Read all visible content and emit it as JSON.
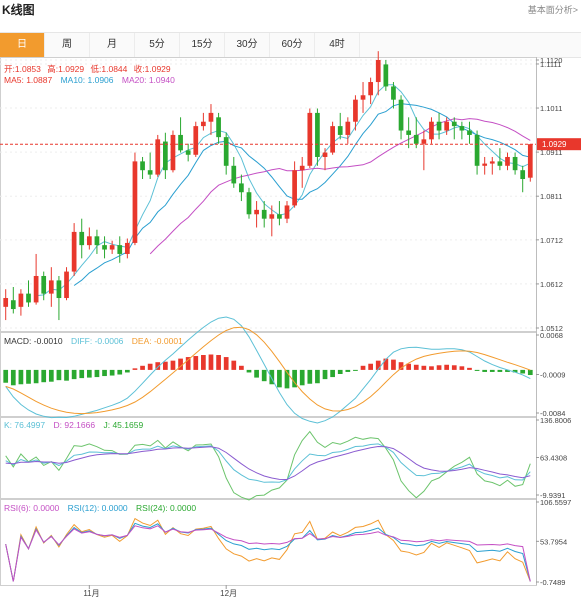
{
  "header": {
    "title": "K线图",
    "right_link": "基本面分析>"
  },
  "tabs": [
    {
      "label": "日",
      "active": true
    },
    {
      "label": "周",
      "active": false
    },
    {
      "label": "月",
      "active": false
    },
    {
      "label": "5分",
      "active": false
    },
    {
      "label": "15分",
      "active": false
    },
    {
      "label": "30分",
      "active": false
    },
    {
      "label": "60分",
      "active": false
    },
    {
      "label": "4时",
      "active": false
    }
  ],
  "colors": {
    "up": "#e8372c",
    "down": "#2aa830",
    "ma5": "#5cc0d6",
    "ma10": "#2a9fd0",
    "ma20": "#c44fc4",
    "accent": "#f29b2e"
  },
  "ohlc_info": {
    "open_label": "开:",
    "open": "1.0853",
    "high_label": "高:",
    "high": "1.0929",
    "low_label": "低:",
    "low": "1.0844",
    "close_label": "收:",
    "close": "1.0929"
  },
  "ma_info": {
    "ma5": "MA5: 1.0887",
    "ma10": "MA10: 1.0906",
    "ma20": "MA20: 1.0940"
  },
  "macd_info": {
    "macd": "MACD: -0.0010",
    "diff": "DIFF: -0.0006",
    "dea": "DEA: -0.0001"
  },
  "kdj_info": {
    "k": "K: 76.4997",
    "d": "D: 92.1666",
    "j": "J: 45.1659"
  },
  "rsi_info": {
    "rsi6": "RSI(6): 0.0000",
    "rsi12": "RSI(12): 0.0000",
    "rsi24": "RSI(24): 0.0000"
  },
  "chart_data": [
    {
      "type": "candlestick",
      "title": "K线图",
      "y_ticks": [
        "1.1120",
        "1.1111",
        "1.1011",
        "1.0911",
        "1.0811",
        "1.0712",
        "1.0612",
        "1.0512"
      ],
      "ylim": [
        1.0512,
        1.112
      ],
      "current_price_label": "1.0929",
      "x_ticks": [
        "11月",
        "12月"
      ],
      "candles": [
        {
          "o": 1.056,
          "h": 1.06,
          "l": 1.053,
          "c": 1.058
        },
        {
          "o": 1.0575,
          "h": 1.0605,
          "l": 1.0545,
          "c": 1.0555
        },
        {
          "o": 1.056,
          "h": 1.06,
          "l": 1.054,
          "c": 1.059
        },
        {
          "o": 1.059,
          "h": 1.062,
          "l": 1.056,
          "c": 1.057
        },
        {
          "o": 1.057,
          "h": 1.068,
          "l": 1.0565,
          "c": 1.063
        },
        {
          "o": 1.063,
          "h": 1.064,
          "l": 1.0575,
          "c": 1.059
        },
        {
          "o": 1.059,
          "h": 1.065,
          "l": 1.056,
          "c": 1.062
        },
        {
          "o": 1.062,
          "h": 1.063,
          "l": 1.053,
          "c": 1.058
        },
        {
          "o": 1.058,
          "h": 1.065,
          "l": 1.0575,
          "c": 1.064
        },
        {
          "o": 1.064,
          "h": 1.075,
          "l": 1.063,
          "c": 1.073
        },
        {
          "o": 1.073,
          "h": 1.076,
          "l": 1.067,
          "c": 1.07
        },
        {
          "o": 1.07,
          "h": 1.074,
          "l": 1.069,
          "c": 1.072
        },
        {
          "o": 1.072,
          "h": 1.0735,
          "l": 1.068,
          "c": 1.07
        },
        {
          "o": 1.07,
          "h": 1.072,
          "l": 1.067,
          "c": 1.069
        },
        {
          "o": 1.069,
          "h": 1.071,
          "l": 1.068,
          "c": 1.07
        },
        {
          "o": 1.07,
          "h": 1.072,
          "l": 1.066,
          "c": 1.068
        },
        {
          "o": 1.068,
          "h": 1.0715,
          "l": 1.067,
          "c": 1.0705
        },
        {
          "o": 1.0705,
          "h": 1.091,
          "l": 1.07,
          "c": 1.089
        },
        {
          "o": 1.089,
          "h": 1.09,
          "l": 1.085,
          "c": 1.087
        },
        {
          "o": 1.087,
          "h": 1.091,
          "l": 1.085,
          "c": 1.086
        },
        {
          "o": 1.086,
          "h": 1.095,
          "l": 1.0855,
          "c": 1.094
        },
        {
          "o": 1.0935,
          "h": 1.0955,
          "l": 1.085,
          "c": 1.087
        },
        {
          "o": 1.087,
          "h": 1.096,
          "l": 1.0865,
          "c": 1.095
        },
        {
          "o": 1.095,
          "h": 1.099,
          "l": 1.091,
          "c": 1.0915
        },
        {
          "o": 1.0915,
          "h": 1.093,
          "l": 1.089,
          "c": 1.0905
        },
        {
          "o": 1.0905,
          "h": 1.098,
          "l": 1.09,
          "c": 1.097
        },
        {
          "o": 1.097,
          "h": 1.1,
          "l": 1.096,
          "c": 1.098
        },
        {
          "o": 1.098,
          "h": 1.102,
          "l": 1.095,
          "c": 1.1
        },
        {
          "o": 1.099,
          "h": 1.1,
          "l": 1.093,
          "c": 1.0945
        },
        {
          "o": 1.0945,
          "h": 1.0955,
          "l": 1.086,
          "c": 1.088
        },
        {
          "o": 1.088,
          "h": 1.09,
          "l": 1.083,
          "c": 1.084
        },
        {
          "o": 1.084,
          "h": 1.086,
          "l": 1.08,
          "c": 1.082
        },
        {
          "o": 1.082,
          "h": 1.083,
          "l": 1.076,
          "c": 1.077
        },
        {
          "o": 1.077,
          "h": 1.08,
          "l": 1.074,
          "c": 1.078
        },
        {
          "o": 1.078,
          "h": 1.08,
          "l": 1.074,
          "c": 1.076
        },
        {
          "o": 1.076,
          "h": 1.079,
          "l": 1.072,
          "c": 1.077
        },
        {
          "o": 1.077,
          "h": 1.08,
          "l": 1.0745,
          "c": 1.076
        },
        {
          "o": 1.076,
          "h": 1.08,
          "l": 1.075,
          "c": 1.079
        },
        {
          "o": 1.079,
          "h": 1.089,
          "l": 1.0785,
          "c": 1.087
        },
        {
          "o": 1.087,
          "h": 1.09,
          "l": 1.083,
          "c": 1.088
        },
        {
          "o": 1.088,
          "h": 1.101,
          "l": 1.0875,
          "c": 1.1
        },
        {
          "o": 1.1,
          "h": 1.101,
          "l": 1.088,
          "c": 1.09
        },
        {
          "o": 1.09,
          "h": 1.092,
          "l": 1.087,
          "c": 1.091
        },
        {
          "o": 1.091,
          "h": 1.098,
          "l": 1.0905,
          "c": 1.097
        },
        {
          "o": 1.097,
          "h": 1.1,
          "l": 1.094,
          "c": 1.095
        },
        {
          "o": 1.095,
          "h": 1.099,
          "l": 1.093,
          "c": 1.098
        },
        {
          "o": 1.098,
          "h": 1.104,
          "l": 1.096,
          "c": 1.103
        },
        {
          "o": 1.103,
          "h": 1.107,
          "l": 1.1,
          "c": 1.104
        },
        {
          "o": 1.104,
          "h": 1.108,
          "l": 1.102,
          "c": 1.107
        },
        {
          "o": 1.107,
          "h": 1.114,
          "l": 1.104,
          "c": 1.112
        },
        {
          "o": 1.111,
          "h": 1.112,
          "l": 1.105,
          "c": 1.106
        },
        {
          "o": 1.106,
          "h": 1.107,
          "l": 1.101,
          "c": 1.103
        },
        {
          "o": 1.103,
          "h": 1.104,
          "l": 1.094,
          "c": 1.096
        },
        {
          "o": 1.096,
          "h": 1.099,
          "l": 1.092,
          "c": 1.095
        },
        {
          "o": 1.095,
          "h": 1.099,
          "l": 1.092,
          "c": 1.093
        },
        {
          "o": 1.093,
          "h": 1.096,
          "l": 1.087,
          "c": 1.094
        },
        {
          "o": 1.094,
          "h": 1.099,
          "l": 1.093,
          "c": 1.098
        },
        {
          "o": 1.098,
          "h": 1.1,
          "l": 1.094,
          "c": 1.096
        },
        {
          "o": 1.096,
          "h": 1.099,
          "l": 1.095,
          "c": 1.098
        },
        {
          "o": 1.098,
          "h": 1.099,
          "l": 1.094,
          "c": 1.097
        },
        {
          "o": 1.097,
          "h": 1.098,
          "l": 1.094,
          "c": 1.096
        },
        {
          "o": 1.096,
          "h": 1.098,
          "l": 1.093,
          "c": 1.095
        },
        {
          "o": 1.095,
          "h": 1.096,
          "l": 1.086,
          "c": 1.088
        },
        {
          "o": 1.088,
          "h": 1.09,
          "l": 1.086,
          "c": 1.0885
        },
        {
          "o": 1.0885,
          "h": 1.09,
          "l": 1.086,
          "c": 1.089
        },
        {
          "o": 1.089,
          "h": 1.092,
          "l": 1.087,
          "c": 1.088
        },
        {
          "o": 1.088,
          "h": 1.091,
          "l": 1.087,
          "c": 1.09
        },
        {
          "o": 1.09,
          "h": 1.091,
          "l": 1.086,
          "c": 1.087
        },
        {
          "o": 1.087,
          "h": 1.088,
          "l": 1.082,
          "c": 1.085
        },
        {
          "o": 1.0853,
          "h": 1.0929,
          "l": 1.0844,
          "c": 1.0929
        }
      ]
    },
    {
      "type": "bar",
      "title": "MACD",
      "y_ticks": [
        "0.0068",
        "-0.0009",
        "-0.0084"
      ],
      "ylim": [
        -0.0084,
        0.0068
      ],
      "values": [
        -0.0025,
        -0.003,
        -0.0028,
        -0.0027,
        -0.0026,
        -0.0024,
        -0.0023,
        -0.002,
        -0.0021,
        -0.0018,
        -0.0016,
        -0.0015,
        -0.0014,
        -0.0012,
        -0.0011,
        -0.0009,
        -0.0005,
        0.0003,
        0.0008,
        0.0012,
        0.0015,
        0.0016,
        0.0018,
        0.0022,
        0.0025,
        0.0027,
        0.0029,
        0.003,
        0.0029,
        0.0025,
        0.0018,
        0.0008,
        -0.0005,
        -0.0015,
        -0.0022,
        -0.0028,
        -0.0034,
        -0.0036,
        -0.0034,
        -0.003,
        -0.0027,
        -0.0026,
        -0.0018,
        -0.0014,
        -0.0008,
        -0.0004,
        -0.0001,
        0.0008,
        0.0012,
        0.0018,
        0.0022,
        0.002,
        0.0015,
        0.0012,
        0.001,
        0.0008,
        0.0007,
        0.0009,
        0.001,
        0.0009,
        0.0007,
        0.0004,
        -0.0002,
        -0.0004,
        -0.0004,
        -0.0004,
        -0.0004,
        -0.0005,
        -0.0007,
        -0.001
      ]
    },
    {
      "type": "line",
      "title": "KDJ",
      "y_ticks": [
        "136.8006",
        "63.4308",
        "-9.9391"
      ],
      "ylim": [
        -9.9391,
        136.8006
      ]
    },
    {
      "type": "line",
      "title": "RSI",
      "y_ticks": [
        "106.5597",
        "53.7954",
        "-0.7489"
      ],
      "ylim": [
        -0.7489,
        106.5597
      ]
    }
  ]
}
